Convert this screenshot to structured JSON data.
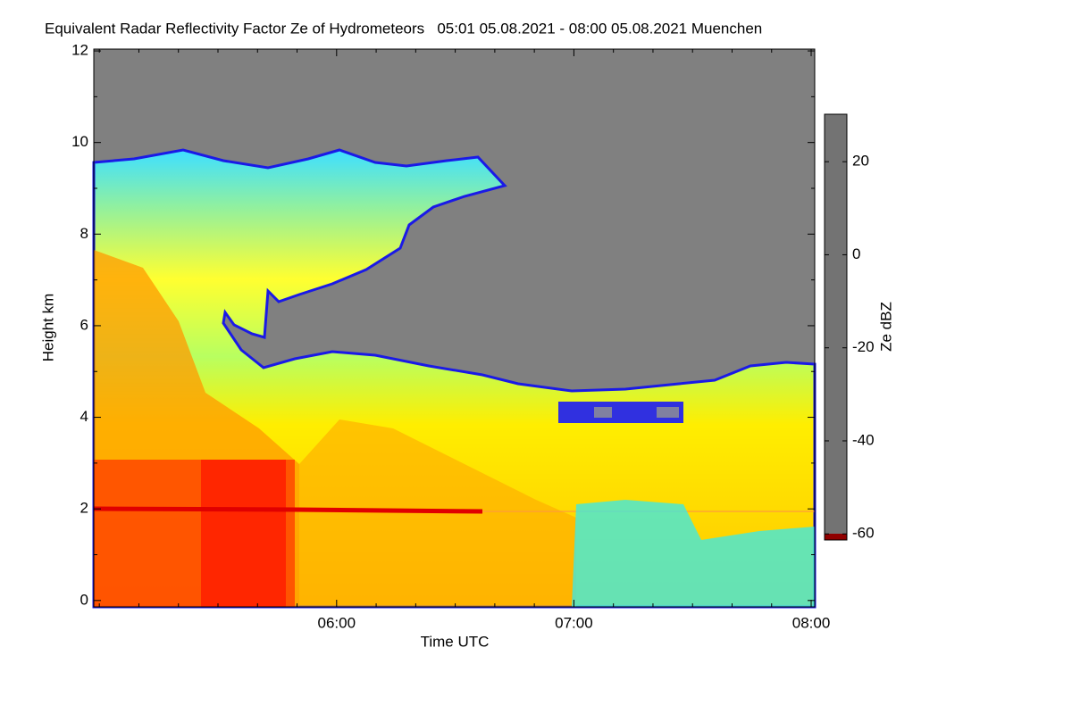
{
  "chart_data": {
    "type": "heatmap",
    "title": "Equivalent Radar Reflectivity Factor Ze of Hydrometeors   05:01 05.08.2021 - 08:00 05.08.2021 Muenchen",
    "xlabel": "Time UTC",
    "ylabel": "Height km",
    "xlim": [
      298.6,
      480.9
    ],
    "xticks": [
      {
        "value": 360,
        "label": "06:00"
      },
      {
        "value": 420,
        "label": "07:00"
      },
      {
        "value": 480,
        "label": "08:00"
      }
    ],
    "xminorticks": [
      300,
      310,
      320,
      330,
      340,
      350,
      370,
      380,
      390,
      400,
      410,
      430,
      440,
      450,
      460,
      470
    ],
    "ylim": [
      -0.14,
      12.04
    ],
    "yticks": [
      0,
      2,
      4,
      6,
      8,
      10,
      12
    ],
    "yminorticks": [
      1,
      3,
      5,
      7,
      9,
      11
    ],
    "colorbar_label": "Ze dBZ",
    "clim": [
      -61.3,
      30.2
    ],
    "cticks": [
      -60,
      -40,
      -20,
      0,
      20
    ],
    "colorscale": [
      [
        -60,
        "#737373"
      ],
      [
        -56,
        "#737373"
      ],
      [
        -54,
        "#0000a0"
      ],
      [
        -40,
        "#0000ff"
      ],
      [
        -30,
        "#00c8ff"
      ],
      [
        -20,
        "#30ffe0"
      ],
      [
        -10,
        "#a0ff60"
      ],
      [
        0,
        "#ffff00"
      ],
      [
        10,
        "#ff9000"
      ],
      [
        20,
        "#ff2000"
      ],
      [
        30,
        "#900000"
      ]
    ]
  }
}
